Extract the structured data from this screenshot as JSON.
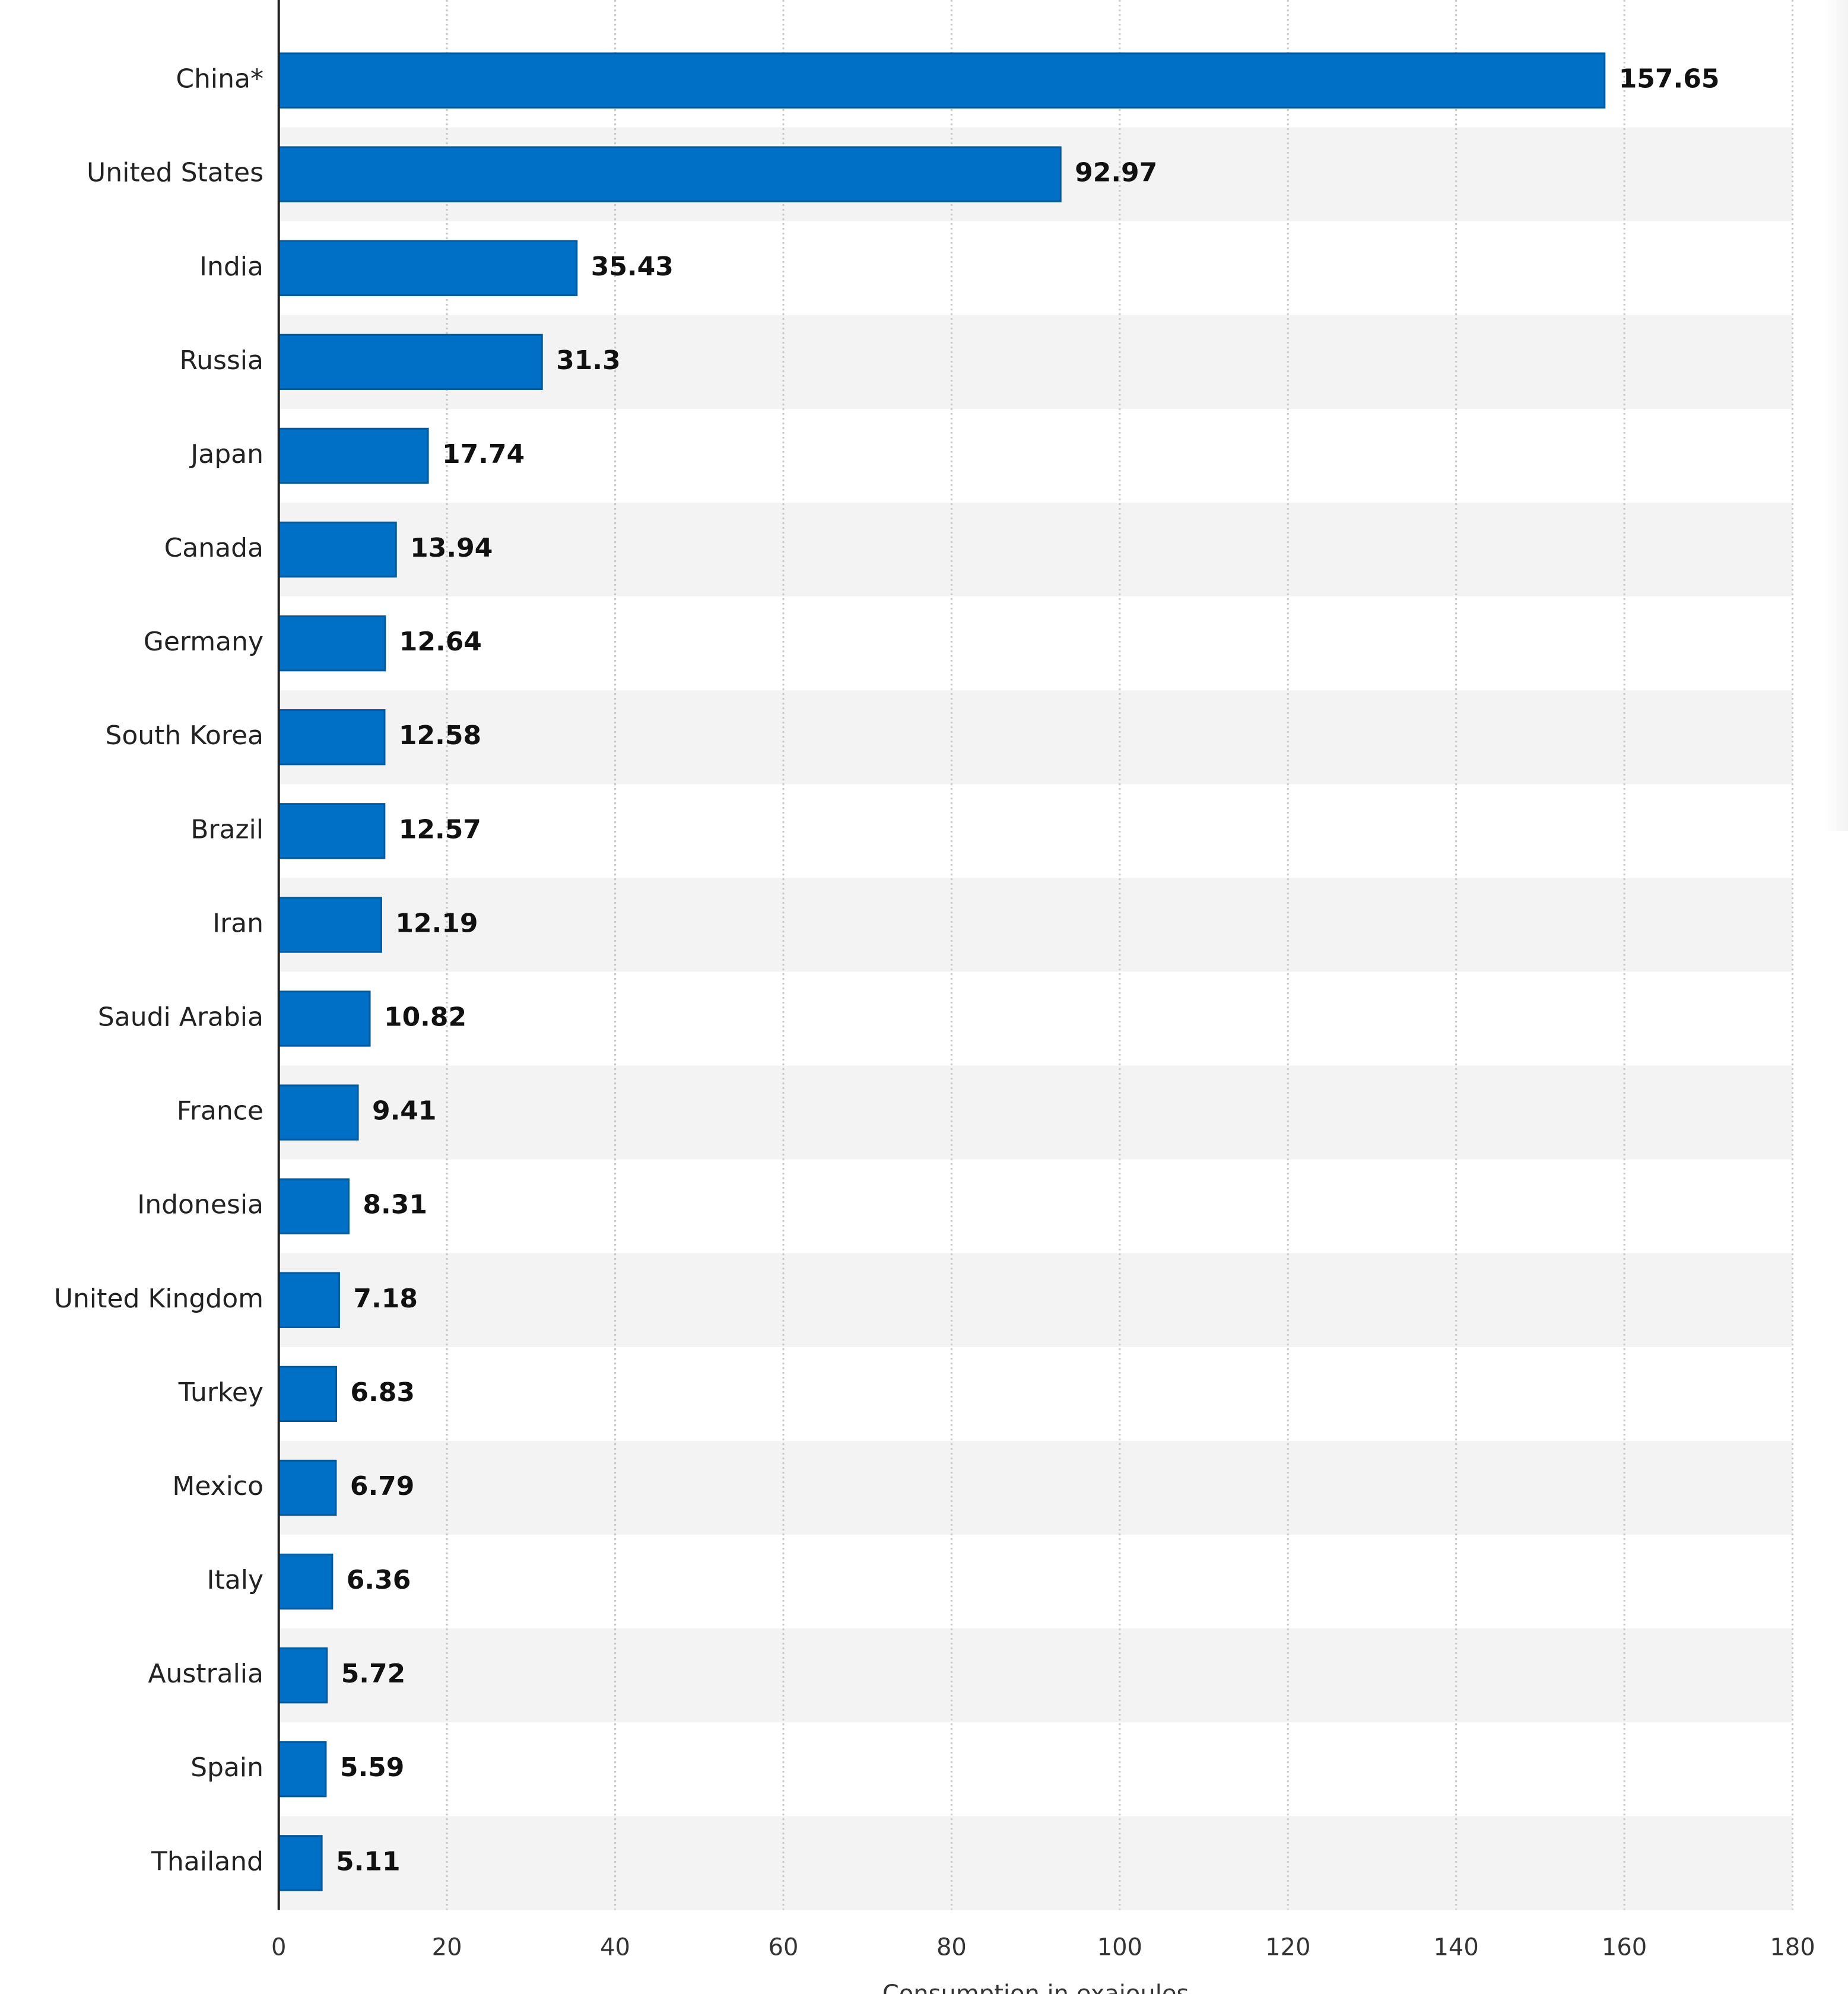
{
  "chart_data": {
    "type": "bar",
    "orientation": "horizontal",
    "categories": [
      "China*",
      "United States",
      "India",
      "Russia",
      "Japan",
      "Canada",
      "Germany",
      "South Korea",
      "Brazil",
      "Iran",
      "Saudi Arabia",
      "France",
      "Indonesia",
      "United Kingdom",
      "Turkey",
      "Mexico",
      "Italy",
      "Australia",
      "Spain",
      "Thailand"
    ],
    "values": [
      157.65,
      92.97,
      35.43,
      31.3,
      17.74,
      13.94,
      12.64,
      12.58,
      12.57,
      12.19,
      10.82,
      9.41,
      8.31,
      7.18,
      6.83,
      6.79,
      6.36,
      5.72,
      5.59,
      5.11
    ],
    "value_labels": [
      "157.65",
      "92.97",
      "35.43",
      "31.3",
      "17.74",
      "13.94",
      "12.64",
      "12.58",
      "12.57",
      "12.19",
      "10.82",
      "9.41",
      "8.31",
      "7.18",
      "6.83",
      "6.79",
      "6.36",
      "5.72",
      "5.59",
      "5.11"
    ],
    "xlabel": "Consumption in exajoules",
    "xlim": [
      0,
      180
    ],
    "xticks": [
      "0",
      "20",
      "40",
      "60",
      "80",
      "100",
      "120",
      "140",
      "160",
      "180"
    ],
    "grid": "vertical dotted",
    "legend": "none",
    "colors": {
      "bar": "#0070c6",
      "bar_edge": "#005a9e",
      "band": "#f3f3f3",
      "grid": "#c8c8c8",
      "axis": "#222222"
    }
  }
}
